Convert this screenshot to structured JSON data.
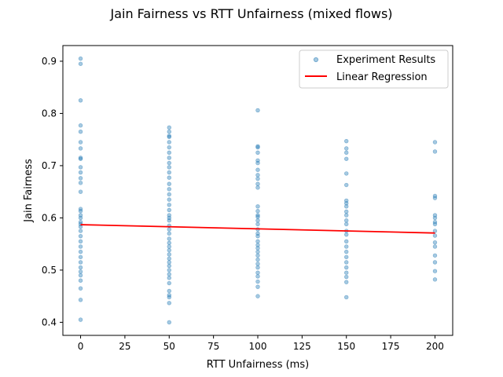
{
  "chart_data": {
    "type": "scatter",
    "title": "Jain Fairness vs RTT Unfairness (mixed flows)",
    "xlabel": "RTT Unfairness (ms)",
    "ylabel": "Jain Fairness",
    "xlim": [
      -10,
      210
    ],
    "ylim": [
      0.375,
      0.93
    ],
    "xticks": [
      0,
      25,
      50,
      75,
      100,
      125,
      150,
      175,
      200
    ],
    "yticks": [
      0.4,
      0.5,
      0.6,
      0.7,
      0.8,
      0.9
    ],
    "grid": false,
    "legend_position": "top-right",
    "colors": {
      "points": "#1f77b4",
      "regression": "#ff0000"
    },
    "series": [
      {
        "name": "Experiment Results",
        "kind": "scatter",
        "points": [
          [
            0,
            0.905
          ],
          [
            0,
            0.895
          ],
          [
            0,
            0.825
          ],
          [
            0,
            0.777
          ],
          [
            0,
            0.765
          ],
          [
            0,
            0.745
          ],
          [
            0,
            0.733
          ],
          [
            0,
            0.715
          ],
          [
            0,
            0.713
          ],
          [
            0,
            0.697
          ],
          [
            0,
            0.687
          ],
          [
            0,
            0.676
          ],
          [
            0,
            0.667
          ],
          [
            0,
            0.65
          ],
          [
            0,
            0.617
          ],
          [
            0,
            0.613
          ],
          [
            0,
            0.605
          ],
          [
            0,
            0.6
          ],
          [
            0,
            0.592
          ],
          [
            0,
            0.588
          ],
          [
            0,
            0.583
          ],
          [
            0,
            0.575
          ],
          [
            0,
            0.565
          ],
          [
            0,
            0.555
          ],
          [
            0,
            0.545
          ],
          [
            0,
            0.535
          ],
          [
            0,
            0.525
          ],
          [
            0,
            0.515
          ],
          [
            0,
            0.505
          ],
          [
            0,
            0.497
          ],
          [
            0,
            0.49
          ],
          [
            0,
            0.48
          ],
          [
            0,
            0.465
          ],
          [
            0,
            0.443
          ],
          [
            0,
            0.405
          ],
          [
            50,
            0.773
          ],
          [
            50,
            0.765
          ],
          [
            50,
            0.757
          ],
          [
            50,
            0.755
          ],
          [
            50,
            0.745
          ],
          [
            50,
            0.735
          ],
          [
            50,
            0.725
          ],
          [
            50,
            0.715
          ],
          [
            50,
            0.705
          ],
          [
            50,
            0.697
          ],
          [
            50,
            0.687
          ],
          [
            50,
            0.677
          ],
          [
            50,
            0.665
          ],
          [
            50,
            0.655
          ],
          [
            50,
            0.645
          ],
          [
            50,
            0.635
          ],
          [
            50,
            0.625
          ],
          [
            50,
            0.615
          ],
          [
            50,
            0.605
          ],
          [
            50,
            0.6
          ],
          [
            50,
            0.595
          ],
          [
            50,
            0.585
          ],
          [
            50,
            0.578
          ],
          [
            50,
            0.57
          ],
          [
            50,
            0.56
          ],
          [
            50,
            0.552
          ],
          [
            50,
            0.545
          ],
          [
            50,
            0.538
          ],
          [
            50,
            0.53
          ],
          [
            50,
            0.522
          ],
          [
            50,
            0.515
          ],
          [
            50,
            0.508
          ],
          [
            50,
            0.5
          ],
          [
            50,
            0.492
          ],
          [
            50,
            0.485
          ],
          [
            50,
            0.475
          ],
          [
            50,
            0.46
          ],
          [
            50,
            0.452
          ],
          [
            50,
            0.448
          ],
          [
            50,
            0.437
          ],
          [
            50,
            0.4
          ],
          [
            100,
            0.806
          ],
          [
            100,
            0.737
          ],
          [
            100,
            0.735
          ],
          [
            100,
            0.725
          ],
          [
            100,
            0.71
          ],
          [
            100,
            0.705
          ],
          [
            100,
            0.692
          ],
          [
            100,
            0.682
          ],
          [
            100,
            0.675
          ],
          [
            100,
            0.665
          ],
          [
            100,
            0.658
          ],
          [
            100,
            0.622
          ],
          [
            100,
            0.613
          ],
          [
            100,
            0.605
          ],
          [
            100,
            0.602
          ],
          [
            100,
            0.595
          ],
          [
            100,
            0.588
          ],
          [
            100,
            0.578
          ],
          [
            100,
            0.57
          ],
          [
            100,
            0.565
          ],
          [
            100,
            0.555
          ],
          [
            100,
            0.548
          ],
          [
            100,
            0.542
          ],
          [
            100,
            0.535
          ],
          [
            100,
            0.528
          ],
          [
            100,
            0.52
          ],
          [
            100,
            0.512
          ],
          [
            100,
            0.505
          ],
          [
            100,
            0.495
          ],
          [
            100,
            0.488
          ],
          [
            100,
            0.478
          ],
          [
            100,
            0.468
          ],
          [
            100,
            0.45
          ],
          [
            150,
            0.747
          ],
          [
            150,
            0.733
          ],
          [
            150,
            0.725
          ],
          [
            150,
            0.713
          ],
          [
            150,
            0.685
          ],
          [
            150,
            0.663
          ],
          [
            150,
            0.633
          ],
          [
            150,
            0.628
          ],
          [
            150,
            0.622
          ],
          [
            150,
            0.612
          ],
          [
            150,
            0.605
          ],
          [
            150,
            0.595
          ],
          [
            150,
            0.588
          ],
          [
            150,
            0.575
          ],
          [
            150,
            0.568
          ],
          [
            150,
            0.555
          ],
          [
            150,
            0.545
          ],
          [
            150,
            0.535
          ],
          [
            150,
            0.525
          ],
          [
            150,
            0.515
          ],
          [
            150,
            0.505
          ],
          [
            150,
            0.495
          ],
          [
            150,
            0.487
          ],
          [
            150,
            0.477
          ],
          [
            150,
            0.448
          ],
          [
            200,
            0.745
          ],
          [
            200,
            0.727
          ],
          [
            200,
            0.642
          ],
          [
            200,
            0.638
          ],
          [
            200,
            0.605
          ],
          [
            200,
            0.6
          ],
          [
            200,
            0.592
          ],
          [
            200,
            0.588
          ],
          [
            200,
            0.575
          ],
          [
            200,
            0.566
          ],
          [
            200,
            0.553
          ],
          [
            200,
            0.545
          ],
          [
            200,
            0.528
          ],
          [
            200,
            0.515
          ],
          [
            200,
            0.498
          ],
          [
            200,
            0.482
          ]
        ]
      },
      {
        "name": "Linear Regression",
        "kind": "line",
        "x": [
          0,
          200
        ],
        "y": [
          0.587,
          0.571
        ]
      }
    ]
  }
}
